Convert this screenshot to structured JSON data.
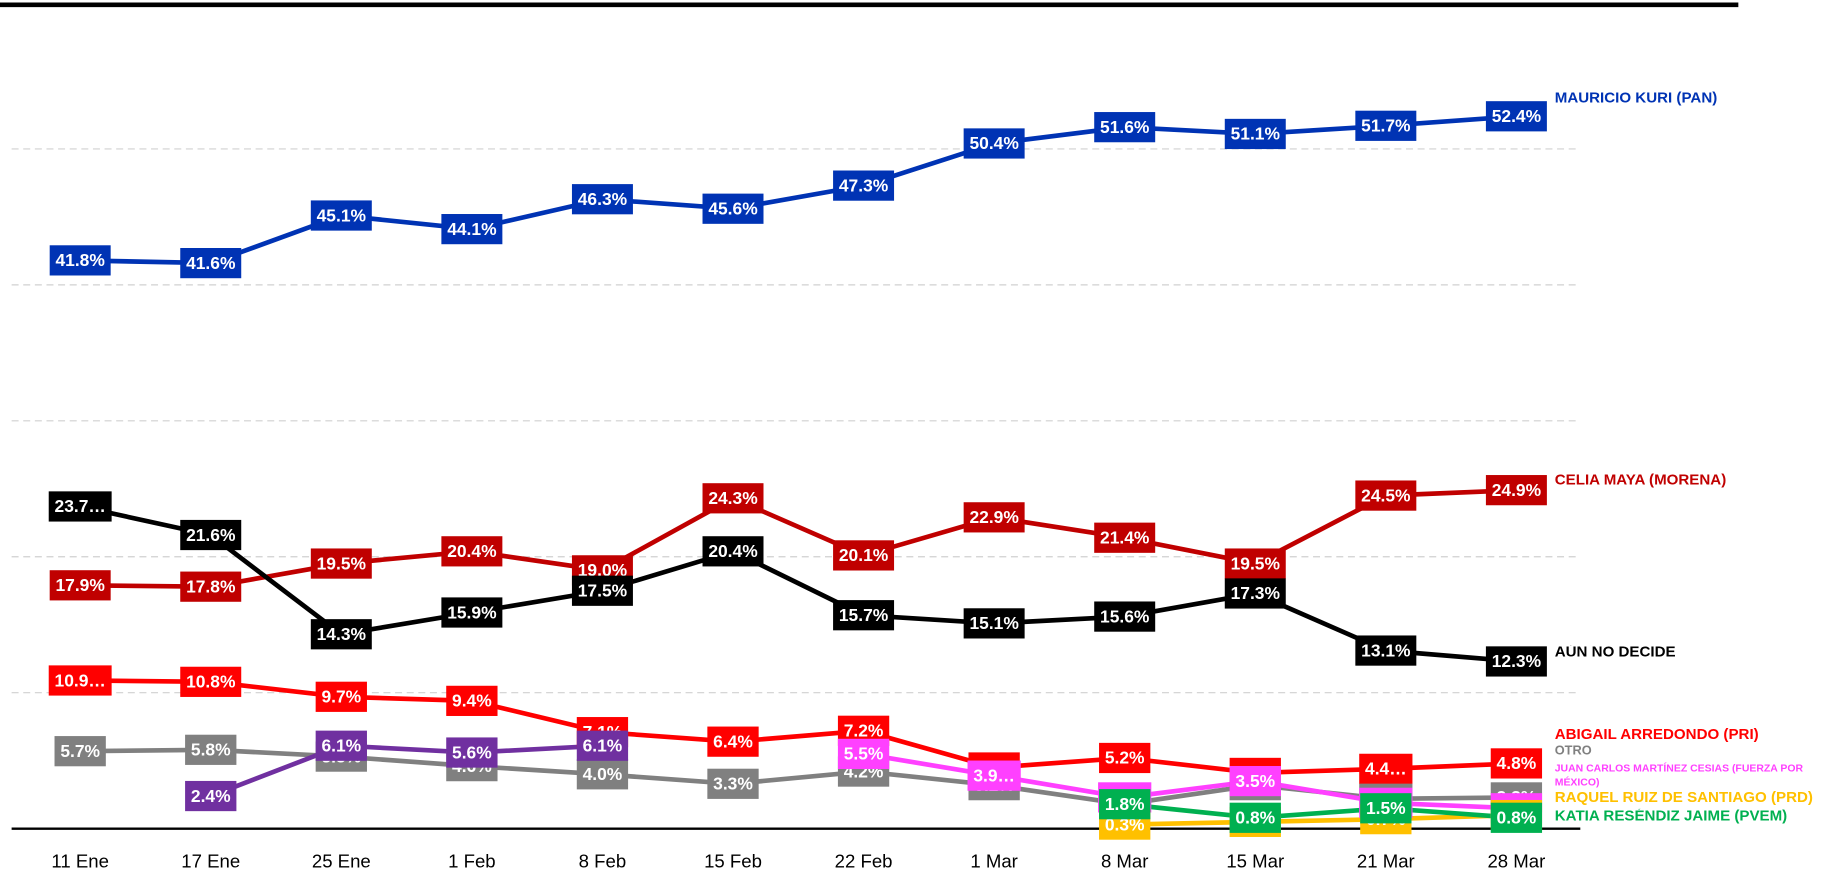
{
  "chart_data": {
    "type": "line",
    "categories": [
      "11 Ene",
      "17 Ene",
      "25 Ene",
      "1 Feb",
      "8 Feb",
      "15 Feb",
      "22 Feb",
      "1 Mar",
      "8 Mar",
      "15 Mar",
      "21 Mar",
      "28 Mar"
    ],
    "ylim": [
      0,
      60
    ],
    "yticks": [
      10,
      20,
      30,
      40,
      50
    ],
    "grid": true,
    "series": [
      {
        "name": "MAURICIO KURI (PAN)",
        "color": "#0033b4",
        "values": [
          41.8,
          41.6,
          45.1,
          44.1,
          46.3,
          45.6,
          47.3,
          50.4,
          51.6,
          51.1,
          51.7,
          52.4
        ],
        "value_labels": [
          "41.8%",
          "41.6%",
          "45.1%",
          "44.1%",
          "46.3%",
          "45.6%",
          "47.3%",
          "50.4%",
          "51.6%",
          "51.1%",
          "51.7%",
          "52.4%"
        ]
      },
      {
        "name": "CELIA MAYA (MORENA)",
        "color": "#c00000",
        "values": [
          17.9,
          17.8,
          19.5,
          20.4,
          19.0,
          24.3,
          20.1,
          22.9,
          21.4,
          19.5,
          24.5,
          24.9
        ],
        "value_labels": [
          "17.9%",
          "17.8%",
          "19.5%",
          "20.4%",
          "19.0%",
          "24.3%",
          "20.1%",
          "22.9%",
          "21.4%",
          "19.5%",
          "24.5%",
          "24.9%"
        ]
      },
      {
        "name": "AÚN NO DECIDE",
        "color": "#000000",
        "values": [
          23.7,
          21.6,
          14.3,
          15.9,
          17.5,
          20.4,
          15.7,
          15.1,
          15.6,
          17.3,
          13.1,
          12.3
        ],
        "value_labels": [
          "23.7…",
          "21.6%",
          "14.3%",
          "15.9%",
          "17.5%",
          "20.4%",
          "15.7%",
          "15.1%",
          "15.6%",
          "17.3%",
          "13.1%",
          "12.3%"
        ]
      },
      {
        "name": "ABIGAIL ARREDONDO (PRI)",
        "color": "#ff0000",
        "values": [
          10.9,
          10.8,
          9.7,
          9.4,
          7.1,
          6.4,
          7.2,
          4.5,
          5.2,
          4.1,
          4.4,
          4.8
        ],
        "value_labels": [
          "10.9…",
          "10.8%",
          "9.7%",
          "9.4%",
          "7.1%",
          "6.4%",
          "7.2%",
          "4.5%",
          "5.2%",
          "4.1%",
          "4.4…",
          "4.8%"
        ]
      },
      {
        "name": "OTRO",
        "color": "#808080",
        "values": [
          5.7,
          5.8,
          5.3,
          4.6,
          4.0,
          3.3,
          4.2,
          3.2,
          1.8,
          3.2,
          2.2,
          2.3
        ],
        "value_labels": [
          "5.7%",
          "5.8%",
          "5.3%",
          "4.6%",
          "4.0%",
          "3.3%",
          "4.2%",
          "3.2%",
          "1.8%",
          "3.2%",
          "2.2…",
          "2.3%"
        ]
      },
      {
        "color": "#7030a0",
        "values": [
          null,
          2.4,
          6.1,
          5.6,
          6.1,
          null,
          null,
          null,
          null,
          null,
          null,
          null
        ],
        "value_labels": [
          null,
          "2.4%",
          "6.1%",
          "5.6%",
          "6.1%",
          null,
          null,
          null,
          null,
          null,
          null,
          null
        ]
      },
      {
        "name": "JUAN CARLOS MARTÍNEZ CESIAS (FUERZA POR MÉXICO)",
        "color": "#ff40ff",
        "values": [
          null,
          null,
          null,
          null,
          null,
          null,
          5.5,
          3.9,
          2.3,
          3.5,
          1.9,
          1.5
        ],
        "value_labels": [
          null,
          null,
          null,
          null,
          null,
          null,
          "5.5%",
          "3.9…",
          "2.3…",
          "3.5%",
          "1.9…",
          "1.5%"
        ]
      },
      {
        "name": "RAQUEL RUIZ DE SANTIAGO (PRD)",
        "color": "#ffc000",
        "values": [
          null,
          null,
          null,
          null,
          null,
          null,
          null,
          null,
          0.3,
          0.5,
          0.7,
          1.0
        ],
        "value_labels": [
          null,
          null,
          null,
          null,
          null,
          null,
          null,
          null,
          "0.3%",
          "0.5%",
          "0.7%",
          "1.0%"
        ]
      },
      {
        "name": "KATIA RESÉNDIZ JAIME (PVEM)",
        "color": "#00b050",
        "values": [
          null,
          null,
          null,
          null,
          null,
          null,
          null,
          null,
          1.8,
          0.8,
          1.5,
          0.8
        ],
        "value_labels": [
          null,
          null,
          null,
          null,
          null,
          null,
          null,
          null,
          "1.8%",
          "0.8%",
          "1.5%",
          "0.8%"
        ]
      }
    ]
  }
}
